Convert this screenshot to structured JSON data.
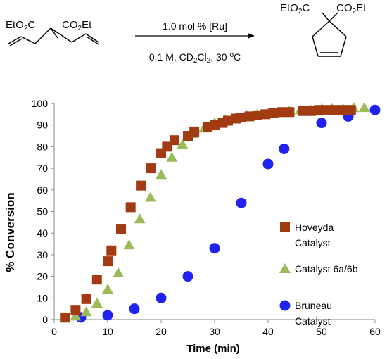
{
  "scheme": {
    "reactant": {
      "label_left": "EtO2C",
      "label_right": "CO2Et"
    },
    "product": {
      "label_left": "EtO2C",
      "label_right": "CO2Et"
    },
    "arrow_top": "1.0 mol % [Ru]",
    "arrow_bottom": "0.1 M, CD2Cl2, 30 °C"
  },
  "chart_data": {
    "type": "scatter",
    "xlabel": "Time (min)",
    "ylabel": "% Conversion",
    "xlim": [
      0,
      60
    ],
    "ylim": [
      0,
      100
    ],
    "xticks": [
      0,
      10,
      20,
      30,
      40,
      50,
      60
    ],
    "yticks": [
      0,
      10,
      20,
      30,
      40,
      50,
      60,
      70,
      80,
      90,
      100
    ],
    "grid": false,
    "legend_position": "right",
    "series": [
      {
        "name": "Hoveyda Catalyst",
        "marker": "square",
        "color": "#a23b12",
        "x": [
          2,
          4,
          6,
          8,
          10,
          10.7,
          12.5,
          14.3,
          16.2,
          18.1,
          20,
          21.1,
          22.5,
          25,
          26.2,
          28.7,
          30,
          31.5,
          32.5,
          34,
          35,
          36.5,
          38,
          39.5,
          41,
          42.5,
          44,
          46.5,
          48,
          49.5,
          51,
          52.5,
          54,
          55.5
        ],
        "y": [
          1,
          4.5,
          9.5,
          18.5,
          27,
          32,
          42,
          52,
          62,
          70,
          77,
          80,
          83,
          85,
          87,
          89,
          90,
          91,
          92,
          93,
          93.5,
          94,
          94.5,
          95,
          95.5,
          96,
          96,
          96.5,
          96.5,
          97,
          97,
          97,
          97,
          97
        ]
      },
      {
        "name": "Catalyst 6a/6b",
        "marker": "triangle",
        "color": "#9bbb59",
        "x": [
          2,
          4,
          6,
          8,
          10,
          12,
          14,
          16,
          18,
          20,
          22,
          24,
          26,
          28,
          30,
          32,
          34,
          36,
          38,
          40,
          42,
          44,
          46,
          48,
          50,
          52,
          54,
          56,
          58
        ],
        "y": [
          0.5,
          1.5,
          3.5,
          7.5,
          14,
          21.5,
          34.5,
          46.5,
          56.5,
          67,
          75,
          81,
          86,
          88.5,
          91,
          92.5,
          93.5,
          94.5,
          95,
          95.5,
          96,
          96.5,
          97,
          97,
          97.5,
          97.5,
          97.5,
          98,
          98
        ]
      },
      {
        "name": "Bruneau Catalyst",
        "marker": "circle",
        "color": "#1f22f0",
        "x": [
          5,
          10,
          15,
          20,
          25,
          30,
          35,
          40,
          43,
          50,
          55,
          60
        ],
        "y": [
          1,
          2,
          5,
          10,
          20,
          33,
          54,
          72,
          79,
          91,
          94,
          97
        ]
      }
    ]
  }
}
